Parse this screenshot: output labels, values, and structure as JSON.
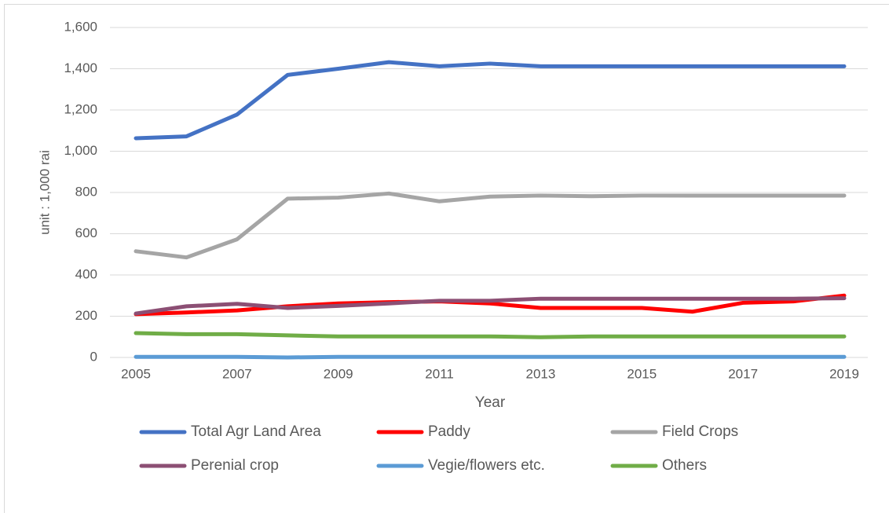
{
  "chart_data": {
    "type": "line",
    "y_label": "unit : 1,000 rai",
    "x_label": "Year",
    "x": [
      2005,
      2006,
      2007,
      2008,
      2009,
      2010,
      2011,
      2012,
      2013,
      2014,
      2015,
      2016,
      2017,
      2018,
      2019
    ],
    "xlim": [
      2005,
      2019
    ],
    "xticks": [
      2005,
      2007,
      2009,
      2011,
      2013,
      2015,
      2017,
      2019
    ],
    "ylim": [
      0,
      1600
    ],
    "yticks": [
      0,
      200,
      400,
      600,
      800,
      {
        "value": 1000,
        "label": "1,000"
      },
      {
        "value": 1200,
        "label": "1,200"
      },
      {
        "value": 1400,
        "label": "1,400"
      },
      {
        "value": 1600,
        "label": "1,600"
      }
    ],
    "grid": true,
    "series": [
      {
        "name": "Total Agr Land Area",
        "color": "#4472c4",
        "values": [
          1063,
          1072,
          1178,
          1370,
          1400,
          1432,
          1412,
          1425,
          1412,
          1412,
          1412,
          1412,
          1412,
          1412,
          1412
        ]
      },
      {
        "name": "Paddy",
        "color": "#ff0000",
        "values": [
          210,
          218,
          228,
          248,
          262,
          268,
          272,
          262,
          240,
          240,
          240,
          222,
          265,
          272,
          300
        ]
      },
      {
        "name": "Field Crops",
        "color": "#a5a5a5",
        "values": [
          515,
          485,
          573,
          770,
          775,
          795,
          757,
          780,
          785,
          782,
          785,
          785,
          785,
          785,
          785
        ]
      },
      {
        "name": "Perenial crop",
        "color": "#8c4f74",
        "values": [
          213,
          248,
          260,
          240,
          250,
          262,
          275,
          275,
          285,
          285,
          285,
          285,
          285,
          285,
          287
        ]
      },
      {
        "name": "Vegie/flowers etc.",
        "color": "#5b9bd5",
        "values": [
          3,
          3,
          3,
          0,
          3,
          3,
          3,
          3,
          3,
          3,
          3,
          3,
          3,
          3,
          3
        ]
      },
      {
        "name": "Others",
        "color": "#70ad47",
        "values": [
          118,
          113,
          113,
          107,
          102,
          102,
          102,
          102,
          98,
          102,
          102,
          102,
          102,
          102,
          102
        ]
      }
    ]
  }
}
